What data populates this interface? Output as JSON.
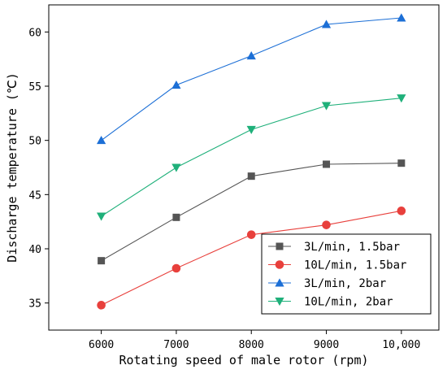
{
  "chart_data": {
    "type": "line",
    "title": "",
    "xlabel": "Rotating speed of male rotor (rpm)",
    "ylabel": "Discharge temperature (℃)",
    "x": [
      6000,
      7000,
      8000,
      9000,
      10000
    ],
    "x_tick_labels": [
      "6000",
      "7000",
      "8000",
      "9000",
      "10,000"
    ],
    "xlim": [
      5300,
      10500
    ],
    "ylim": [
      32.5,
      62.5
    ],
    "y_ticks": [
      35,
      40,
      45,
      50,
      55,
      60
    ],
    "grid": false,
    "legend_position": "bottom-right",
    "series": [
      {
        "name": "3L/min, 1.5bar",
        "values": [
          38.9,
          42.9,
          46.7,
          47.8,
          47.9
        ],
        "color": "#555555",
        "marker": "square"
      },
      {
        "name": "10L/min, 1.5bar",
        "values": [
          34.8,
          38.2,
          41.3,
          42.2,
          43.5
        ],
        "color": "#e8403c",
        "marker": "circle"
      },
      {
        "name": "3L/min, 2bar",
        "values": [
          50.0,
          55.1,
          57.8,
          60.7,
          61.3
        ],
        "color": "#1c6fd6",
        "marker": "triangle-up"
      },
      {
        "name": "10L/min, 2bar",
        "values": [
          43.0,
          47.5,
          51.0,
          53.2,
          53.9
        ],
        "color": "#1fb07a",
        "marker": "triangle-down"
      }
    ]
  }
}
